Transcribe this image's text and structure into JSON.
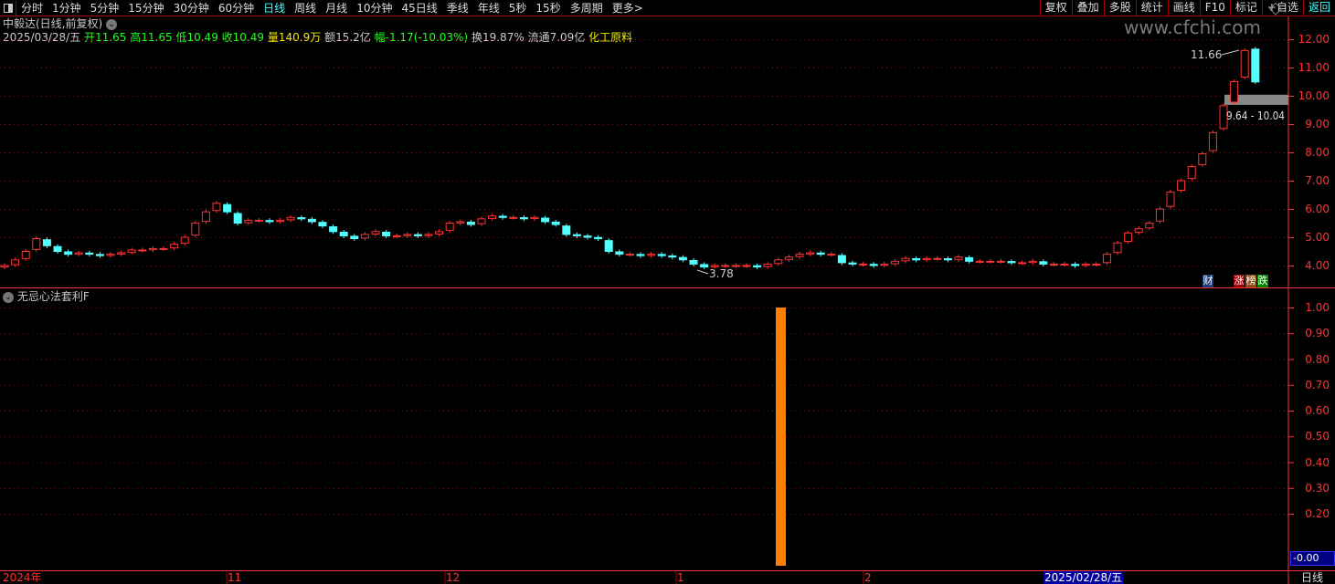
{
  "toolbar": {
    "periods": [
      "分时",
      "1分钟",
      "5分钟",
      "15分钟",
      "30分钟",
      "60分钟",
      "日线",
      "周线",
      "月线",
      "10分钟",
      "45日线",
      "季线",
      "年线",
      "5秒",
      "15秒",
      "多周期",
      "更多>"
    ],
    "active": "日线",
    "right": [
      "复权",
      "叠加",
      "多股",
      "统计",
      "画线",
      "F10",
      "标记",
      "+自选",
      "返回"
    ]
  },
  "watermark": "www.cfchi.com",
  "stock": {
    "title": "中毅达(日线,前复权)",
    "date": "2025/03/28/五",
    "open_label": "开",
    "open": "11.65",
    "high_label": "高",
    "high": "11.65",
    "low_label": "低",
    "low": "10.49",
    "close_label": "收",
    "close": "10.49",
    "vol_label": "量",
    "volume": "140.9万",
    "amount": "额15.2亿",
    "change_label": "幅",
    "change": "-1.17(-10.03%)",
    "turnover": "换19.87%",
    "float": "流通7.09亿",
    "sector": "化工原料"
  },
  "colors": {
    "up": "#ff3333",
    "down": "#54ffff",
    "axis": "#ff3333",
    "grid": "#a00000",
    "indicator_bar": "#ff8000"
  },
  "main_axis": [
    "12.00",
    "11.00",
    "10.00",
    "9.00",
    "8.00",
    "7.00",
    "6.00",
    "5.00",
    "4.00"
  ],
  "annotations": {
    "high": "11.66",
    "low": "3.78",
    "band": "9.64 - 10.04"
  },
  "tags": [
    "财",
    "涨",
    "榜",
    "跌"
  ],
  "indicator": {
    "title": "无忌心法套利F",
    "axis": [
      "1.00",
      "0.90",
      "0.80",
      "0.70",
      "0.60",
      "0.50",
      "0.40",
      "0.30",
      "0.20"
    ],
    "current": "-0.00",
    "bar_value": 1.0
  },
  "dates": {
    "labels": [
      "2024年",
      "11",
      "12",
      "1",
      "2"
    ],
    "cursor": "2025/02/28/五",
    "period": "日线"
  },
  "chart_data": {
    "type": "candlestick",
    "ylim": [
      3.6,
      12.3
    ],
    "close": [
      4.0,
      4.2,
      4.5,
      4.95,
      4.7,
      4.5,
      4.4,
      4.45,
      4.4,
      4.35,
      4.4,
      4.45,
      4.55,
      4.55,
      4.6,
      4.6,
      4.75,
      5.0,
      5.5,
      5.9,
      6.2,
      5.9,
      5.5,
      5.6,
      5.6,
      5.55,
      5.6,
      5.7,
      5.65,
      5.55,
      5.4,
      5.2,
      5.05,
      4.95,
      5.1,
      5.2,
      5.05,
      5.05,
      5.1,
      5.05,
      5.1,
      5.2,
      5.5,
      5.55,
      5.45,
      5.65,
      5.75,
      5.7,
      5.7,
      5.65,
      5.7,
      5.55,
      5.45,
      5.1,
      5.05,
      5.0,
      4.95,
      4.5,
      4.4,
      4.4,
      4.35,
      4.4,
      4.35,
      4.3,
      4.2,
      4.05,
      3.95,
      4.0,
      4.0,
      4.0,
      4.0,
      3.95,
      4.05,
      4.2,
      4.3,
      4.4,
      4.45,
      4.4,
      4.4,
      4.1,
      4.05,
      4.05,
      4.0,
      4.05,
      4.15,
      4.25,
      4.2,
      4.25,
      4.25,
      4.2,
      4.3,
      4.15,
      4.15,
      4.15,
      4.15,
      4.1,
      4.1,
      4.15,
      4.05,
      4.05,
      4.05,
      4.0,
      4.05,
      4.05,
      4.4,
      4.8,
      5.15,
      5.3,
      5.5,
      6.0,
      6.6,
      7.0,
      7.5,
      7.95,
      8.7,
      9.65,
      10.5,
      11.6,
      10.49
    ],
    "last_open": 11.65
  }
}
